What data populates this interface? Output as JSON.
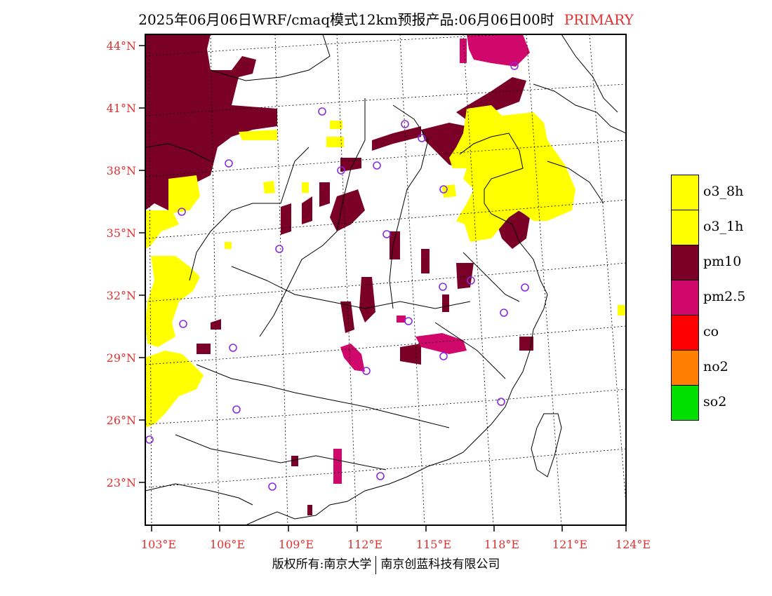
{
  "title": {
    "main": "2025年06月06日WRF/cmaq模式12km预报产品:06月06日00时",
    "tag": "PRIMARY"
  },
  "footer": {
    "left": "版权所有:南京大学",
    "right": "南京创蓝科技有限公司"
  },
  "axes": {
    "lat_labels": [
      "44°N",
      "41°N",
      "38°N",
      "35°N",
      "32°N",
      "29°N",
      "26°N",
      "23°N"
    ],
    "lon_labels": [
      "103°E",
      "106°E",
      "109°E",
      "112°E",
      "115°E",
      "118°E",
      "121°E",
      "124°E"
    ]
  },
  "legend": [
    {
      "label": "o3_8h",
      "color": "#ffff00"
    },
    {
      "label": "o3_1h",
      "color": "#ffff00"
    },
    {
      "label": "pm10",
      "color": "#7b0028"
    },
    {
      "label": "pm2.5",
      "color": "#d0086c"
    },
    {
      "label": "co",
      "color": "#ff0000"
    },
    {
      "label": "no2",
      "color": "#ff8000"
    },
    {
      "label": "so2",
      "color": "#00e000"
    }
  ],
  "colors": {
    "label": "#e03030",
    "station": "#8a2be2",
    "o3": "#ffff00",
    "pm10": "#7b0028",
    "pm25": "#d0086c"
  }
}
